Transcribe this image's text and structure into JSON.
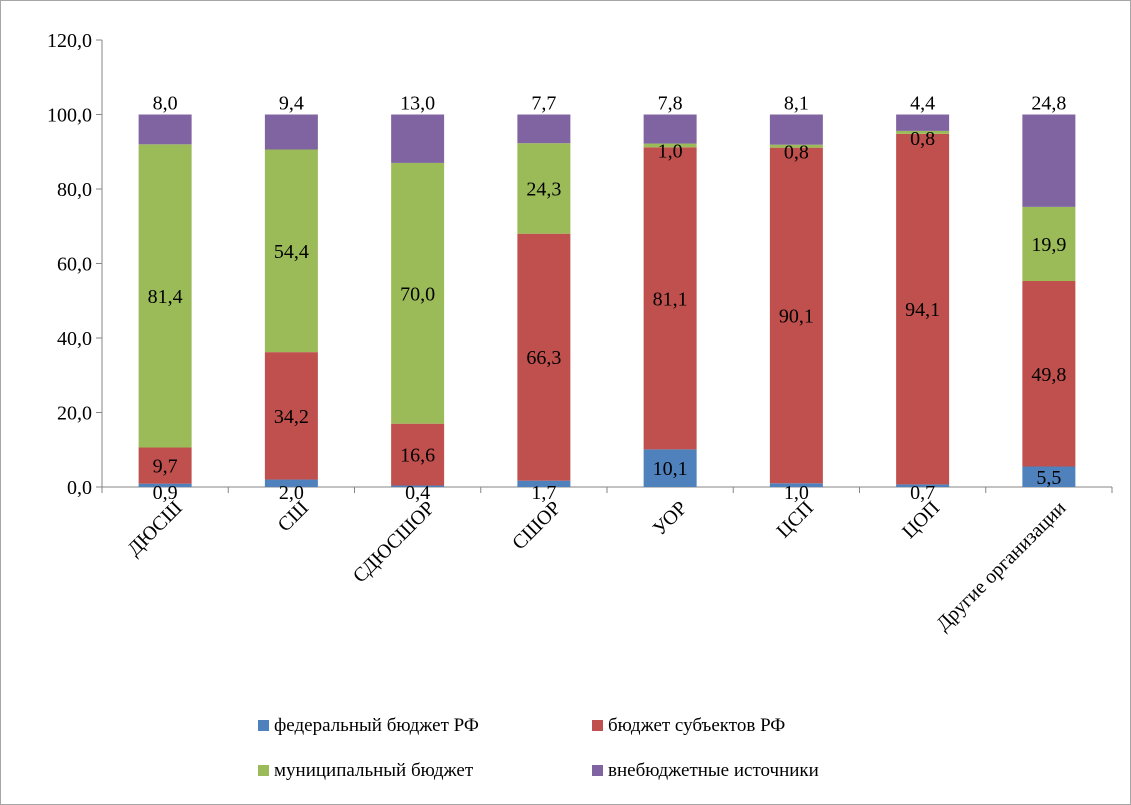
{
  "chart_data": {
    "type": "bar",
    "stacked": true,
    "categories": [
      "ДЮСШ",
      "СШ",
      "СДЮСШОР",
      "СШОР",
      "УОР",
      "ЦСП",
      "ЦОП",
      "Другие организации"
    ],
    "series": [
      {
        "name": "федеральный бюджет РФ",
        "color": "#4f81bd",
        "values": [
          0.9,
          2.0,
          0.4,
          1.7,
          10.1,
          1.0,
          0.7,
          5.5
        ],
        "labels": [
          "0,9",
          "2,0",
          "0,4",
          "1,7",
          "10,1",
          "1,0",
          "0,7",
          "5,5"
        ]
      },
      {
        "name": "бюджет субъектов РФ",
        "color": "#c0504d",
        "values": [
          9.7,
          34.2,
          16.6,
          66.3,
          81.1,
          90.1,
          94.1,
          49.8
        ],
        "labels": [
          "9,7",
          "34,2",
          "16,6",
          "66,3",
          "81,1",
          "90,1",
          "94,1",
          "49,8"
        ]
      },
      {
        "name": "муниципальный бюджет",
        "color": "#9bbb59",
        "values": [
          81.4,
          54.4,
          70.0,
          24.3,
          1.0,
          0.8,
          0.8,
          19.9
        ],
        "labels": [
          "81,4",
          "54,4",
          "70,0",
          "24,3",
          "1,0",
          "0,8",
          "0,8",
          "19,9"
        ]
      },
      {
        "name": "внебюджетные источники",
        "color": "#8064a2",
        "values": [
          8.0,
          9.4,
          13.0,
          7.7,
          7.8,
          8.1,
          4.4,
          24.8
        ],
        "labels": [
          "8,0",
          "9,4",
          "13,0",
          "7,7",
          "7,8",
          "8,1",
          "4,4",
          "24,8"
        ]
      }
    ],
    "yticks": [
      "0,0",
      "20,0",
      "40,0",
      "60,0",
      "80,0",
      "100,0",
      "120,0"
    ],
    "ylim": [
      0,
      120
    ],
    "grid": false,
    "legend_position": "bottom",
    "xlabel": "",
    "ylabel": "",
    "title": ""
  }
}
